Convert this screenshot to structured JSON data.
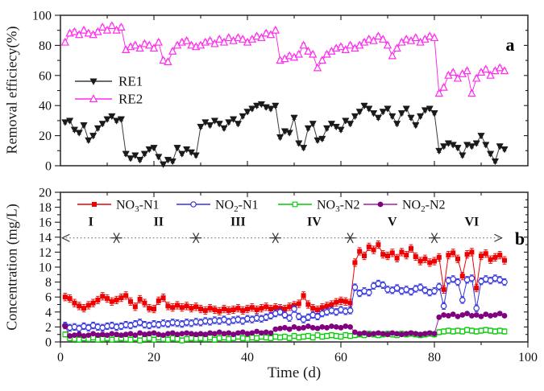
{
  "figure": {
    "xlabel": "Time (d)",
    "panel_a_letter": "a",
    "panel_b_letter": "b"
  },
  "chart_data": [
    {
      "type": "line",
      "panel_label": "a",
      "ylabel": "Removal efficiecy(%)",
      "xlabel": "",
      "xlim": [
        0,
        100
      ],
      "ylim": [
        0,
        100
      ],
      "xticks": {
        "major": 20,
        "minor": 10,
        "labels": []
      },
      "yticks": {
        "major": 20,
        "minor": 10,
        "labels": [
          "0",
          "20",
          "40",
          "60",
          "80",
          "100"
        ]
      },
      "grid": false,
      "legend_position": "inside-left-middle",
      "x": {
        "start": 1,
        "step": 1,
        "count": 95
      },
      "series": [
        {
          "name": "RE1",
          "label_parts": [
            "RE1",
            "",
            ""
          ],
          "color": "#1a1a1a",
          "line_color": "#3a3a3a",
          "marker": "triangle-down-filled",
          "err": 1.2,
          "values": [
            29,
            30,
            24,
            22,
            27,
            17,
            20,
            25,
            28,
            31,
            33,
            30,
            31,
            8,
            5,
            7,
            4,
            8,
            11,
            12,
            6,
            1,
            4,
            3,
            12,
            8,
            11,
            9,
            7,
            26,
            29,
            27,
            30,
            28,
            25,
            29,
            31,
            28,
            33,
            36,
            38,
            40,
            41,
            39,
            38,
            40,
            19,
            23,
            22,
            32,
            15,
            12,
            25,
            28,
            17,
            18,
            25,
            28,
            26,
            24,
            30,
            28,
            33,
            36,
            40,
            38,
            35,
            32,
            36,
            38,
            33,
            28,
            35,
            38,
            32,
            27,
            33,
            37,
            38,
            35,
            10,
            13,
            15,
            14,
            12,
            7,
            14,
            13,
            15,
            20,
            14,
            8,
            3,
            13,
            11
          ]
        },
        {
          "name": "RE2",
          "label_parts": [
            "RE2",
            "",
            ""
          ],
          "color": "#ff2bee",
          "line_color": "#ff2bee",
          "marker": "triangle-up-open",
          "err": 1.5,
          "values": [
            82,
            88,
            89,
            87,
            90,
            88,
            87,
            89,
            92,
            90,
            93,
            90,
            92,
            77,
            79,
            80,
            78,
            81,
            80,
            78,
            82,
            70,
            69,
            76,
            80,
            82,
            83,
            80,
            79,
            80,
            82,
            83,
            81,
            84,
            82,
            85,
            83,
            85,
            84,
            82,
            84,
            86,
            85,
            88,
            87,
            90,
            70,
            71,
            73,
            72,
            74,
            80,
            76,
            74,
            65,
            70,
            74,
            76,
            78,
            79,
            77,
            80,
            78,
            80,
            82,
            84,
            83,
            86,
            84,
            80,
            73,
            78,
            82,
            84,
            83,
            85,
            82,
            84,
            86,
            85,
            48,
            52,
            60,
            62,
            58,
            61,
            63,
            48,
            58,
            62,
            64,
            60,
            63,
            65,
            63
          ]
        }
      ]
    },
    {
      "type": "line",
      "panel_label": "b",
      "ylabel": "Concentration (mg/L)",
      "xlabel": "Time (d)",
      "xlim": [
        0,
        100
      ],
      "ylim": [
        0,
        20
      ],
      "xticks": {
        "major": 20,
        "minor": 10,
        "labels": [
          "0",
          "20",
          "40",
          "60",
          "80",
          "100"
        ]
      },
      "yticks": {
        "major": 2,
        "minor": 1,
        "labels": [
          "0",
          "2",
          "4",
          "6",
          "8",
          "10",
          "12",
          "14",
          "16",
          "18",
          "20"
        ]
      },
      "grid": false,
      "legend_position": "inside-top-row",
      "x": {
        "start": 1,
        "step": 1,
        "count": 95
      },
      "phases": {
        "labels": [
          "I",
          "II",
          "III",
          "IV",
          "V",
          "VI"
        ],
        "label_x": [
          6.5,
          21,
          38,
          54.3,
          71,
          88
        ],
        "label_y": 16.1,
        "boundary_x": [
          12,
          29,
          46,
          62,
          80
        ],
        "line_y": 13.9,
        "line_start_x": 0.4,
        "line_end_x": 94.4
      },
      "series": [
        {
          "name": "NO3-N1",
          "label_parts": [
            "NO",
            "3",
            "-N1"
          ],
          "color": "#ee0000",
          "line_color": "#ee0000",
          "marker": "square-filled",
          "err": 0.5,
          "values": [
            6.0,
            5.8,
            5.2,
            4.8,
            4.5,
            4.9,
            5.2,
            5.6,
            6.1,
            5.8,
            5.4,
            5.6,
            5.9,
            6.2,
            5.4,
            4.7,
            5.7,
            5.2,
            4.5,
            4.4,
            5.5,
            5.9,
            4.8,
            4.6,
            4.9,
            4.6,
            4.8,
            4.5,
            4.7,
            4.4,
            4.2,
            4.5,
            4.3,
            4.1,
            4.4,
            4.2,
            4.3,
            4.5,
            4.2,
            4.4,
            4.6,
            4.3,
            4.5,
            4.7,
            4.4,
            4.6,
            4.5,
            4.4,
            4.7,
            4.9,
            5.1,
            6.2,
            5.0,
            4.5,
            4.3,
            4.6,
            4.8,
            5.0,
            5.3,
            5.5,
            5.4,
            5.2,
            10.6,
            12.1,
            11.5,
            12.7,
            12.3,
            13.0,
            11.7,
            11.5,
            11.9,
            11.2,
            12.0,
            11.6,
            12.5,
            11.4,
            10.8,
            11.1,
            10.6,
            10.8,
            11.3,
            7.0,
            11.6,
            11.9,
            11.1,
            8.8,
            11.7,
            12.0,
            7.2,
            11.5,
            11.8,
            11.0,
            11.3,
            11.6,
            10.9
          ]
        },
        {
          "name": "NO2-N1",
          "label_parts": [
            "NO",
            "2",
            "-N1"
          ],
          "color": "#3333dd",
          "line_color": "#3333dd",
          "marker": "circle-open",
          "err": 0.45,
          "values": [
            2.2,
            1.9,
            2.0,
            1.8,
            2.1,
            1.9,
            2.2,
            2.0,
            1.9,
            2.1,
            2.2,
            2.0,
            2.1,
            2.3,
            2.2,
            2.4,
            2.6,
            2.3,
            2.2,
            2.4,
            2.3,
            2.5,
            2.4,
            2.6,
            2.5,
            2.4,
            2.6,
            2.5,
            2.7,
            2.6,
            2.8,
            2.7,
            2.9,
            2.8,
            3.0,
            2.7,
            2.9,
            3.0,
            2.8,
            3.1,
            3.0,
            3.2,
            3.1,
            3.3,
            3.5,
            3.8,
            4.0,
            3.6,
            3.2,
            4.4,
            3.4,
            3.0,
            3.3,
            3.6,
            3.4,
            3.8,
            4.0,
            4.2,
            4.0,
            4.3,
            4.1,
            4.2,
            7.3,
            6.5,
            6.8,
            6.6,
            7.5,
            7.8,
            7.6,
            7.0,
            6.9,
            7.2,
            6.8,
            7.0,
            6.7,
            7.1,
            7.3,
            6.9,
            6.6,
            6.8,
            7.4,
            4.8,
            8.2,
            8.4,
            8.0,
            5.6,
            8.3,
            8.5,
            4.5,
            8.1,
            8.4,
            8.2,
            8.5,
            8.3,
            8.0
          ]
        },
        {
          "name": "NO3-N2",
          "label_parts": [
            "NO",
            "3",
            "-N2"
          ],
          "color": "#00cc00",
          "line_color": "#00cc00",
          "marker": "square-open",
          "err": 0.35,
          "values": [
            1.0,
            0.5,
            0.4,
            0.3,
            0.5,
            0.4,
            0.6,
            0.3,
            0.4,
            0.5,
            0.3,
            0.4,
            0.5,
            0.4,
            0.3,
            0.5,
            0.2,
            0.4,
            0.5,
            0.3,
            0.6,
            0.4,
            0.3,
            0.5,
            0.4,
            0.2,
            0.4,
            0.5,
            0.4,
            0.5,
            0.4,
            0.6,
            0.3,
            0.5,
            0.6,
            0.4,
            0.5,
            0.7,
            0.5,
            0.4,
            0.6,
            0.5,
            0.7,
            0.6,
            0.5,
            0.7,
            0.6,
            0.7,
            0.5,
            0.8,
            0.6,
            0.7,
            0.8,
            0.6,
            0.9,
            0.7,
            0.8,
            0.9,
            0.8,
            0.7,
            0.9,
            0.8,
            0.9,
            1.0,
            0.9,
            1.1,
            1.0,
            0.9,
            1.0,
            1.1,
            1.0,
            0.9,
            1.1,
            1.0,
            1.1,
            1.0,
            0.9,
            1.0,
            1.1,
            1.0,
            1.3,
            1.4,
            1.5,
            1.4,
            1.5,
            1.4,
            1.6,
            1.5,
            1.4,
            1.5,
            1.6,
            1.5,
            1.4,
            1.5,
            1.4
          ]
        },
        {
          "name": "NO2-N2",
          "label_parts": [
            "NO",
            "2",
            "-N2"
          ],
          "color": "#800080",
          "line_color": "#a020a0",
          "marker": "circle-filled",
          "err": 0.2,
          "values": [
            2.1,
            0.8,
            0.9,
            1.0,
            0.8,
            0.9,
            1.1,
            0.9,
            1.0,
            0.9,
            1.1,
            1.0,
            0.9,
            1.0,
            1.1,
            0.9,
            1.2,
            1.0,
            1.1,
            1.2,
            1.0,
            0.9,
            1.1,
            1.2,
            1.0,
            1.1,
            1.2,
            1.1,
            1.0,
            1.1,
            1.0,
            1.2,
            1.1,
            1.3,
            1.1,
            1.2,
            1.0,
            1.2,
            1.3,
            1.1,
            1.2,
            1.4,
            1.2,
            1.3,
            1.2,
            1.7,
            1.8,
            1.9,
            1.7,
            2.0,
            1.8,
            1.9,
            2.1,
            1.9,
            1.8,
            2.0,
            1.9,
            2.1,
            2.0,
            1.9,
            2.1,
            2.0,
            1.3,
            1.1,
            1.2,
            1.0,
            1.1,
            1.2,
            1.1,
            1.0,
            1.2,
            1.1,
            1.0,
            1.1,
            1.2,
            1.1,
            1.0,
            1.1,
            1.2,
            1.1,
            3.3,
            3.6,
            3.5,
            3.7,
            3.4,
            3.6,
            3.8,
            3.5,
            3.6,
            3.4,
            3.7,
            3.5,
            3.6,
            3.8,
            3.5
          ]
        }
      ]
    }
  ]
}
